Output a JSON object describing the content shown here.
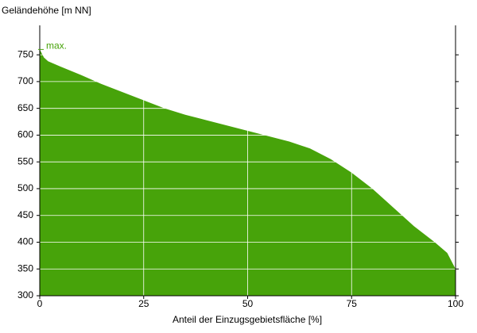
{
  "chart_data": {
    "type": "area",
    "ylabel": "Geländehöhe [m NN]",
    "xlabel": "Anteil der Einzugsgebietsfläche [%]",
    "annotation": "max.",
    "color": "#47a30a",
    "x": [
      0,
      1,
      2,
      5,
      10,
      15,
      20,
      25,
      30,
      35,
      40,
      45,
      50,
      55,
      60,
      65,
      70,
      75,
      80,
      85,
      90,
      95,
      98,
      100
    ],
    "values": [
      760,
      745,
      738,
      728,
      712,
      695,
      680,
      665,
      650,
      638,
      628,
      618,
      608,
      598,
      588,
      575,
      555,
      530,
      500,
      465,
      430,
      400,
      380,
      350
    ],
    "xlim": [
      0,
      100
    ],
    "xticks": [
      0,
      25,
      50,
      75,
      100
    ],
    "ylim": [
      300,
      805
    ],
    "yticks": [
      300,
      350,
      400,
      450,
      500,
      550,
      600,
      650,
      700,
      750
    ],
    "grid": true
  }
}
